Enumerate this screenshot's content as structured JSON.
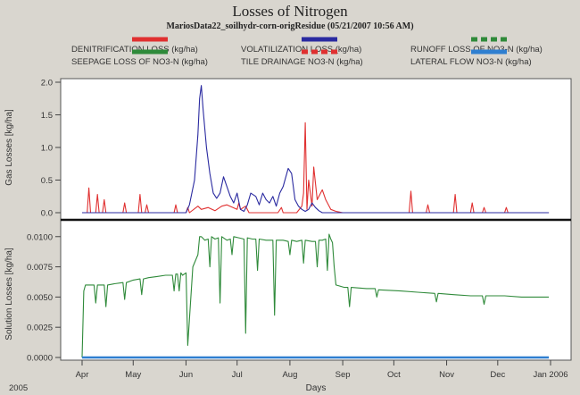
{
  "chart_data": {
    "type": "line",
    "title": "Losses of Nitrogen",
    "subtitle": "MariosData22_soilhydr-corn-origResidue  (05/21/2007  10:56 AM)",
    "xlabel": "Days",
    "year_label": "2005",
    "x_ticks": [
      "Apr",
      "May",
      "Jun",
      "Jul",
      "Aug",
      "Sep",
      "Oct",
      "Nov",
      "Dec",
      "Jan 2006"
    ],
    "legend": [
      {
        "name": "DENITRIFICATION LOSS (kg/ha)",
        "color": "#e03030",
        "style": "solid"
      },
      {
        "name": "VOLATILIZATION LOSS (kg/ha)",
        "color": "#2a2aa0",
        "style": "solid"
      },
      {
        "name": "RUNOFF LOSS OF NO3-N (kg/ha)",
        "color": "#2f8a3a",
        "style": "dashed"
      },
      {
        "name": "SEEPAGE LOSS OF NO3-N (kg/ha)",
        "color": "#2f8a3a",
        "style": "solid"
      },
      {
        "name": "TILE DRAINAGE NO3-N (kg/ha)",
        "color": "#e03030",
        "style": "dashed"
      },
      {
        "name": "LATERAL FLOW NO3-N (kg/ha)",
        "color": "#2f7fd0",
        "style": "solid"
      }
    ],
    "panels": [
      {
        "ylabel": "Gas Losses [kg/ha]",
        "ylim": [
          0,
          2.0
        ],
        "y_ticks": [
          "0.0",
          "0.5",
          "1.0",
          "1.5",
          "2.0"
        ],
        "y_tick_values": [
          0,
          0.5,
          1.0,
          1.5,
          2.0
        ],
        "series": [
          {
            "name": "DENITRIFICATION LOSS (kg/ha)",
            "color": "#e03030",
            "x": [
              "2005-04-01",
              "2005-04-04",
              "2005-04-05",
              "2005-04-06",
              "2005-04-09",
              "2005-04-10",
              "2005-04-11",
              "2005-04-13",
              "2005-04-14",
              "2005-04-15",
              "2005-04-25",
              "2005-04-26",
              "2005-04-27",
              "2005-05-04",
              "2005-05-05",
              "2005-05-06",
              "2005-05-08",
              "2005-05-09",
              "2005-05-10",
              "2005-05-25",
              "2005-05-26",
              "2005-05-27",
              "2005-06-01",
              "2005-06-02",
              "2005-06-03",
              "2005-06-08",
              "2005-06-10",
              "2005-06-14",
              "2005-06-18",
              "2005-06-22",
              "2005-06-25",
              "2005-07-01",
              "2005-07-02",
              "2005-07-03",
              "2005-07-06",
              "2005-07-08",
              "2005-07-10",
              "2005-07-25",
              "2005-07-27",
              "2005-07-28",
              "2005-07-29",
              "2005-08-05",
              "2005-08-08",
              "2005-08-09",
              "2005-08-10",
              "2005-08-11",
              "2005-08-12",
              "2005-08-14",
              "2005-08-15",
              "2005-08-17",
              "2005-08-20",
              "2005-08-22",
              "2005-08-25",
              "2005-08-28",
              "2005-09-01",
              "2005-09-10",
              "2005-10-10",
              "2005-10-11",
              "2005-10-12",
              "2005-10-20",
              "2005-10-21",
              "2005-10-22",
              "2005-11-01",
              "2005-11-05",
              "2005-11-06",
              "2005-11-07",
              "2005-11-10",
              "2005-11-15",
              "2005-11-16",
              "2005-11-17",
              "2005-11-22",
              "2005-11-23",
              "2005-11-24",
              "2005-12-05",
              "2005-12-06",
              "2005-12-07",
              "2005-12-31"
            ],
            "y": [
              0.0,
              0.0,
              0.38,
              0.0,
              0.0,
              0.28,
              0.0,
              0.0,
              0.2,
              0.0,
              0.0,
              0.15,
              0.0,
              0.0,
              0.28,
              0.0,
              0.0,
              0.12,
              0.0,
              0.0,
              0.12,
              0.0,
              0.0,
              0.08,
              0.0,
              0.1,
              0.05,
              0.08,
              0.03,
              0.1,
              0.12,
              0.05,
              0.15,
              0.05,
              0.1,
              0.0,
              0.0,
              0.0,
              0.08,
              0.0,
              0.0,
              0.0,
              0.1,
              0.3,
              1.38,
              0.05,
              0.5,
              0.1,
              0.7,
              0.2,
              0.35,
              0.2,
              0.05,
              0.02,
              0.0,
              0.0,
              0.0,
              0.33,
              0.0,
              0.0,
              0.12,
              0.0,
              0.0,
              0.0,
              0.28,
              0.0,
              0.0,
              0.0,
              0.15,
              0.0,
              0.0,
              0.08,
              0.0,
              0.0,
              0.08,
              0.0,
              0.0
            ]
          },
          {
            "name": "VOLATILIZATION LOSS (kg/ha)",
            "color": "#2a2aa0",
            "x": [
              "2005-04-01",
              "2005-06-01",
              "2005-06-03",
              "2005-06-06",
              "2005-06-08",
              "2005-06-09",
              "2005-06-10",
              "2005-06-11",
              "2005-06-13",
              "2005-06-15",
              "2005-06-17",
              "2005-06-19",
              "2005-06-21",
              "2005-06-23",
              "2005-06-25",
              "2005-06-27",
              "2005-06-29",
              "2005-07-01",
              "2005-07-03",
              "2005-07-05",
              "2005-07-07",
              "2005-07-09",
              "2005-07-12",
              "2005-07-14",
              "2005-07-16",
              "2005-07-18",
              "2005-07-20",
              "2005-07-22",
              "2005-07-24",
              "2005-07-26",
              "2005-07-28",
              "2005-07-31",
              "2005-08-02",
              "2005-08-04",
              "2005-08-06",
              "2005-08-08",
              "2005-08-10",
              "2005-08-12",
              "2005-08-14",
              "2005-08-16",
              "2005-08-18",
              "2005-08-20",
              "2005-12-31"
            ],
            "y": [
              0.0,
              0.0,
              0.12,
              0.5,
              1.2,
              1.75,
              1.95,
              1.6,
              1.0,
              0.6,
              0.3,
              0.22,
              0.3,
              0.55,
              0.4,
              0.25,
              0.15,
              0.3,
              0.05,
              0.02,
              0.12,
              0.3,
              0.25,
              0.12,
              0.3,
              0.2,
              0.15,
              0.25,
              0.1,
              0.3,
              0.4,
              0.68,
              0.6,
              0.2,
              0.1,
              0.05,
              0.02,
              0.05,
              0.15,
              0.08,
              0.03,
              0.0,
              0.0
            ]
          }
        ]
      },
      {
        "ylabel": "Solution Losses [kg/ha]",
        "ylim": [
          0,
          0.0105
        ],
        "y_ticks": [
          "0.0000",
          "0.0025",
          "0.0050",
          "0.0075",
          "0.0100"
        ],
        "y_tick_values": [
          0,
          0.0025,
          0.005,
          0.0075,
          0.01
        ],
        "series": [
          {
            "name": "SEEPAGE LOSS OF NO3-N (kg/ha)",
            "color": "#2f8a3a",
            "x": [
              "2005-04-01",
              "2005-04-02",
              "2005-04-03",
              "2005-04-05",
              "2005-04-08",
              "2005-04-09",
              "2005-04-10",
              "2005-04-12",
              "2005-04-14",
              "2005-04-15",
              "2005-04-16",
              "2005-04-20",
              "2005-04-25",
              "2005-04-26",
              "2005-04-27",
              "2005-05-01",
              "2005-05-05",
              "2005-05-06",
              "2005-05-07",
              "2005-05-10",
              "2005-05-15",
              "2005-05-20",
              "2005-05-24",
              "2005-05-25",
              "2005-05-26",
              "2005-05-27",
              "2005-05-28",
              "2005-05-29",
              "2005-05-30",
              "2005-06-01",
              "2005-06-02",
              "2005-06-05",
              "2005-06-08",
              "2005-06-09",
              "2005-06-10",
              "2005-06-12",
              "2005-06-14",
              "2005-06-15",
              "2005-06-16",
              "2005-06-18",
              "2005-06-20",
              "2005-06-21",
              "2005-06-22",
              "2005-06-25",
              "2005-06-27",
              "2005-06-28",
              "2005-06-29",
              "2005-07-02",
              "2005-07-05",
              "2005-07-06",
              "2005-07-07",
              "2005-07-10",
              "2005-07-12",
              "2005-07-13",
              "2005-07-14",
              "2005-07-18",
              "2005-07-22",
              "2005-07-23",
              "2005-07-24",
              "2005-07-28",
              "2005-07-31",
              "2005-08-01",
              "2005-08-02",
              "2005-08-05",
              "2005-08-08",
              "2005-08-09",
              "2005-08-10",
              "2005-08-14",
              "2005-08-16",
              "2005-08-17",
              "2005-08-18",
              "2005-08-20",
              "2005-08-22",
              "2005-08-23",
              "2005-08-24",
              "2005-08-25",
              "2005-08-26",
              "2005-08-27",
              "2005-08-28",
              "2005-09-02",
              "2005-09-04",
              "2005-09-05",
              "2005-09-06",
              "2005-09-15",
              "2005-09-20",
              "2005-09-21",
              "2005-09-22",
              "2005-10-05",
              "2005-10-15",
              "2005-10-25",
              "2005-10-26",
              "2005-10-27",
              "2005-11-05",
              "2005-11-15",
              "2005-11-22",
              "2005-11-23",
              "2005-11-24",
              "2005-12-05",
              "2005-12-15",
              "2005-12-31"
            ],
            "y": [
              0.0,
              0.0055,
              0.006,
              0.006,
              0.006,
              0.0045,
              0.006,
              0.006,
              0.006,
              0.0042,
              0.006,
              0.0061,
              0.0062,
              0.0048,
              0.0062,
              0.0064,
              0.0065,
              0.0052,
              0.0065,
              0.0066,
              0.0067,
              0.0068,
              0.0068,
              0.0055,
              0.0069,
              0.0069,
              0.0055,
              0.007,
              0.0068,
              0.007,
              0.001,
              0.0075,
              0.0085,
              0.01,
              0.01,
              0.0097,
              0.0098,
              0.0075,
              0.01,
              0.0098,
              0.0099,
              0.0045,
              0.01,
              0.0097,
              0.0098,
              0.0085,
              0.01,
              0.0099,
              0.0098,
              0.002,
              0.0099,
              0.0098,
              0.0098,
              0.0072,
              0.0098,
              0.0097,
              0.0097,
              0.0035,
              0.0097,
              0.0097,
              0.0096,
              0.0085,
              0.0097,
              0.0096,
              0.0097,
              0.0078,
              0.0097,
              0.0096,
              0.0096,
              0.0075,
              0.0097,
              0.0097,
              0.0098,
              0.0072,
              0.0102,
              0.0098,
              0.0095,
              0.0075,
              0.006,
              0.0058,
              0.0058,
              0.0042,
              0.0058,
              0.0057,
              0.0057,
              0.005,
              0.0056,
              0.0055,
              0.0054,
              0.0053,
              0.0046,
              0.0053,
              0.0052,
              0.0051,
              0.0051,
              0.0044,
              0.0051,
              0.0051,
              0.005,
              0.005
            ]
          },
          {
            "name": "LATERAL FLOW NO3-N (kg/ha)",
            "color": "#2f7fd0",
            "x": [
              "2005-04-01",
              "2005-12-31"
            ],
            "y": [
              0.0,
              0.0
            ]
          }
        ]
      }
    ]
  }
}
